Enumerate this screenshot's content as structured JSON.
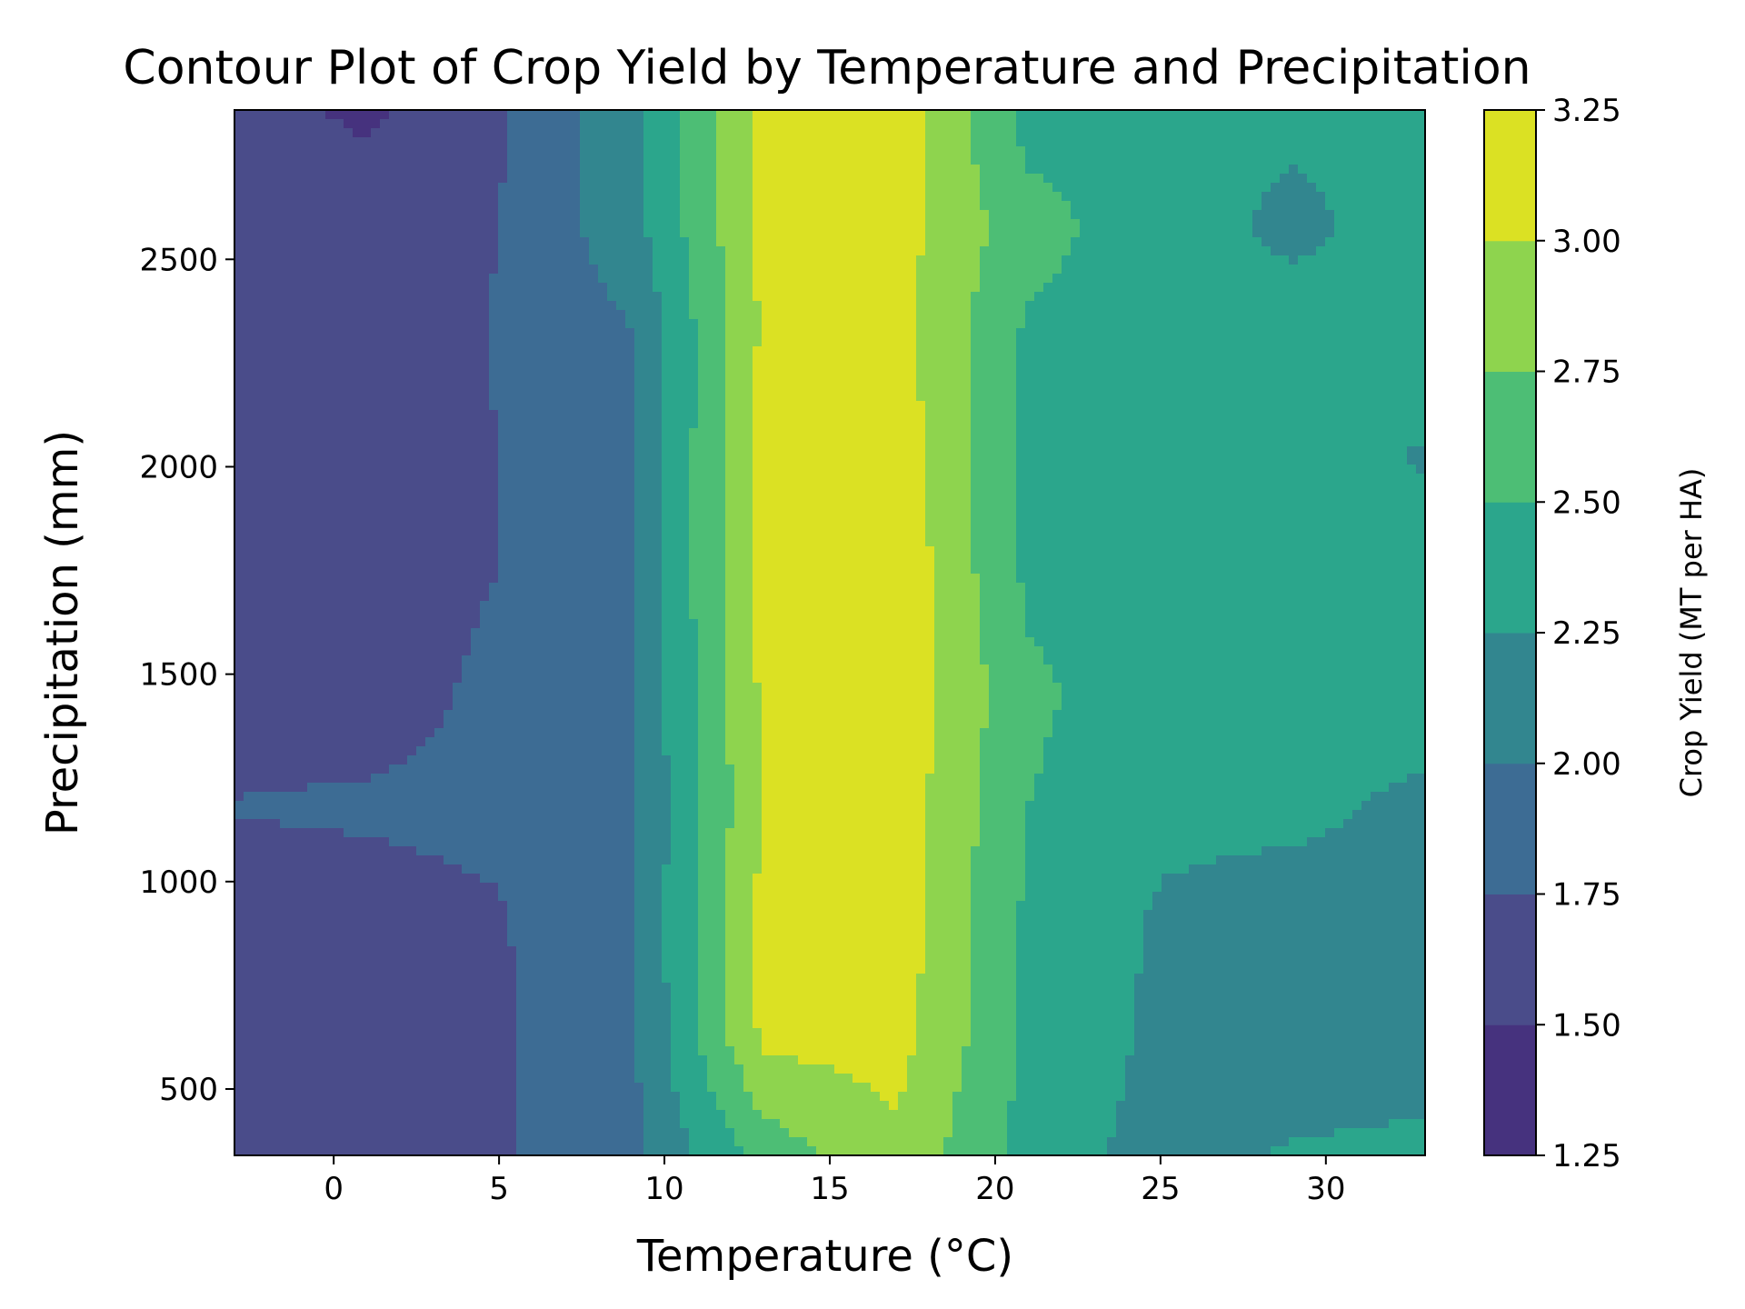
{
  "chart_data": {
    "type": "heatmap",
    "subtype": "filled-contour",
    "title": "Contour Plot of Crop Yield by Temperature and Precipitation",
    "xlabel": "Temperature (°C)",
    "ylabel": "Precipitation (mm)",
    "colorbar_label": "Crop Yield (MT per HA)",
    "xlim": [
      -3,
      33
    ],
    "ylim": [
      340,
      2860
    ],
    "x_ticks": [
      0,
      5,
      10,
      15,
      20,
      25,
      30
    ],
    "y_ticks": [
      500,
      1000,
      1500,
      2000,
      2500
    ],
    "levels": [
      1.25,
      1.5,
      1.75,
      2.0,
      2.25,
      2.5,
      2.75,
      3.0,
      3.25
    ],
    "level_labels": [
      "1.25",
      "1.50",
      "1.75",
      "2.00",
      "2.25",
      "2.50",
      "2.75",
      "3.00",
      "3.25"
    ],
    "level_colors": [
      "#46327e",
      "#4a4c8a",
      "#3d6c94",
      "#32868f",
      "#2ba68c",
      "#4dbe75",
      "#8ed44e",
      "#dbe123"
    ],
    "colormap": "viridis",
    "grid": false,
    "x": [
      -3,
      1,
      5,
      9,
      13,
      17,
      21,
      25,
      29,
      33
    ],
    "y": [
      340,
      620,
      900,
      1180,
      1460,
      1740,
      2020,
      2300,
      2580,
      2860
    ],
    "z": [
      [
        1.64,
        1.66,
        1.72,
        1.94,
        2.6,
        2.95,
        2.4,
        2.15,
        2.28,
        2.3
      ],
      [
        1.64,
        1.66,
        1.72,
        1.95,
        3.05,
        3.1,
        2.45,
        2.2,
        2.08,
        2.15
      ],
      [
        1.64,
        1.66,
        1.73,
        1.96,
        3.1,
        3.15,
        2.45,
        2.22,
        2.15,
        2.18
      ],
      [
        1.76,
        1.78,
        1.8,
        1.97,
        3.0,
        3.15,
        2.5,
        2.3,
        2.3,
        2.2
      ],
      [
        1.64,
        1.65,
        1.8,
        1.98,
        3.05,
        3.2,
        2.55,
        2.35,
        2.35,
        2.35
      ],
      [
        1.64,
        1.65,
        1.75,
        1.99,
        3.1,
        3.2,
        2.45,
        2.35,
        2.35,
        2.35
      ],
      [
        1.64,
        1.65,
        1.75,
        1.98,
        3.1,
        3.15,
        2.45,
        2.35,
        2.35,
        2.23
      ],
      [
        1.64,
        1.65,
        1.76,
        1.98,
        3.05,
        3.1,
        2.45,
        2.35,
        2.35,
        2.35
      ],
      [
        1.63,
        1.65,
        1.75,
        2.15,
        3.05,
        3.1,
        2.6,
        2.35,
        2.2,
        2.35
      ],
      [
        1.6,
        1.45,
        1.72,
        2.2,
        3.1,
        3.15,
        2.4,
        2.3,
        2.3,
        2.3
      ]
    ]
  }
}
